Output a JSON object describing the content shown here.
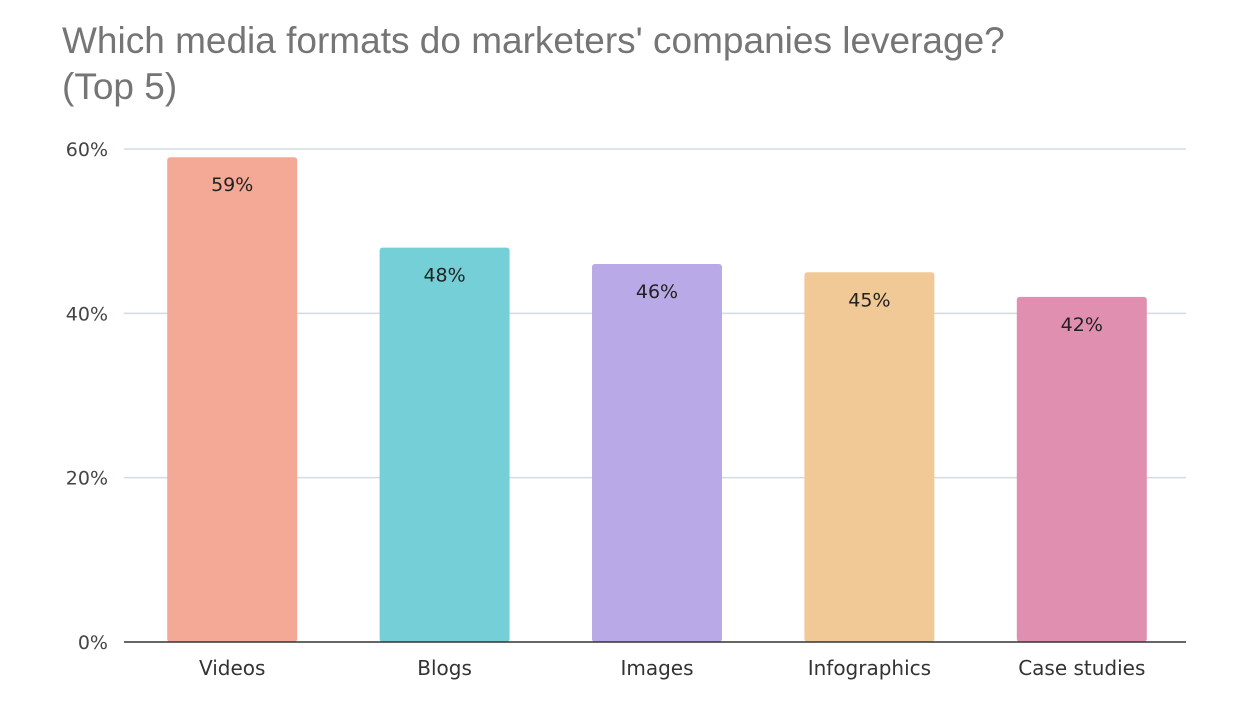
{
  "chart_data": {
    "type": "bar",
    "title": "Which media formats do marketers' companies leverage? (Top 5)",
    "categories": [
      "Videos",
      "Blogs",
      "Images",
      "Infographics",
      "Case studies"
    ],
    "values": [
      59,
      48,
      46,
      45,
      42
    ],
    "data_labels": [
      "59%",
      "48%",
      "46%",
      "45%",
      "42%"
    ],
    "colors": [
      "#f4a896",
      "#74d0d6",
      "#b9a9e6",
      "#f0c996",
      "#e18fb0"
    ],
    "xlabel": "",
    "ylabel": "",
    "ylim": [
      0,
      60
    ],
    "yticks": [
      0,
      20,
      40,
      60
    ],
    "ytick_labels": [
      "0%",
      "20%",
      "40%",
      "60%"
    ],
    "grid": true,
    "legend": "none"
  }
}
